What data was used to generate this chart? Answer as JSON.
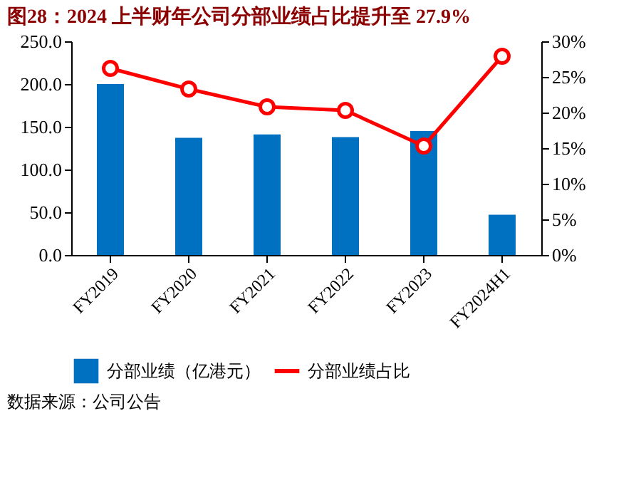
{
  "chart_data": {
    "type": "bar",
    "title": "图28：2024 上半财年公司分部业绩占比提升至 27.9%",
    "categories": [
      "FY2019",
      "FY2020",
      "FY2021",
      "FY2022",
      "FY2023",
      "FY2024H1"
    ],
    "series": [
      {
        "name": "分部业绩（亿港元）",
        "color": "#0070c0",
        "values": [
          200,
          137,
          141,
          138,
          145,
          47
        ]
      },
      {
        "name": "分部业绩占比",
        "type": "line",
        "axis": "y2",
        "color": "#ff0000",
        "marker": "circle",
        "values": [
          26.2,
          23.3,
          20.8,
          20.3,
          15.3,
          27.9
        ]
      }
    ],
    "ylim": [
      0,
      250
    ],
    "yticks": [
      {
        "value": 0,
        "label": "0.0"
      },
      {
        "value": 50,
        "label": "50.0"
      },
      {
        "value": 100,
        "label": "100.0"
      },
      {
        "value": 150,
        "label": "150.0"
      },
      {
        "value": 200,
        "label": "200.0"
      },
      {
        "value": 250,
        "label": "250.0"
      }
    ],
    "y2lim": [
      0,
      30
    ],
    "y2ticks": [
      {
        "value": 0,
        "label": "0%"
      },
      {
        "value": 5,
        "label": "5%"
      },
      {
        "value": 10,
        "label": "10%"
      },
      {
        "value": 15,
        "label": "15%"
      },
      {
        "value": 20,
        "label": "20%"
      },
      {
        "value": 25,
        "label": "25%"
      },
      {
        "value": 30,
        "label": "30%"
      }
    ],
    "legend": "bottom",
    "grid": false,
    "annotations": [
      "数据来源：公司公告"
    ]
  }
}
